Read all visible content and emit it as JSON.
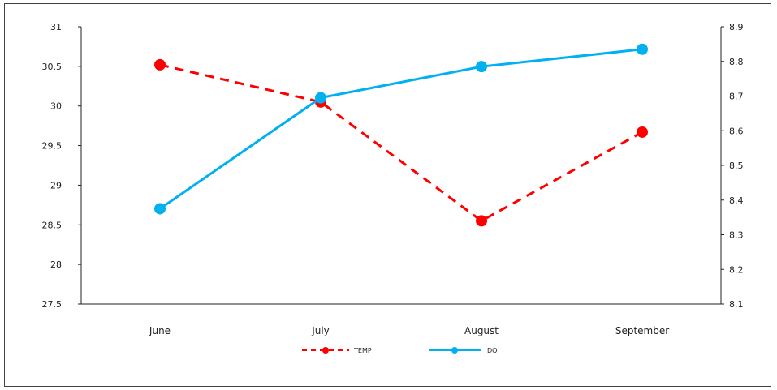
{
  "chart_data": {
    "type": "line",
    "categories": [
      "June",
      "July",
      "August",
      "September"
    ],
    "series": [
      {
        "name": "TEMP",
        "axis": "left",
        "color": "#ff0000",
        "dash": "dashed",
        "values": [
          30.52,
          30.05,
          28.55,
          29.67
        ]
      },
      {
        "name": "DO",
        "axis": "right",
        "color": "#00b0f0",
        "dash": "solid",
        "values": [
          8.375,
          8.695,
          8.785,
          8.835
        ]
      }
    ],
    "y_left": {
      "lim": [
        27.5,
        31
      ],
      "ticks": [
        "27.5",
        "28",
        "28.5",
        "29",
        "29.5",
        "30",
        "30.5",
        "31"
      ]
    },
    "y_right": {
      "lim": [
        8.1,
        8.9
      ],
      "ticks": [
        "8.1",
        "8.2",
        "8.3",
        "8.4",
        "8.5",
        "8.6",
        "8.7",
        "8.8",
        "8.9"
      ]
    },
    "grid": false,
    "legend": "bottom-center"
  }
}
